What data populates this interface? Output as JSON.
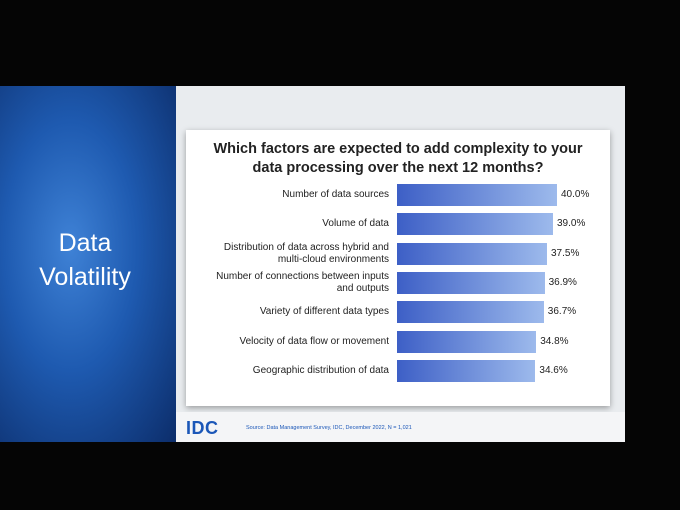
{
  "slide": {
    "section_title": "Data Volatility",
    "logo": "IDC",
    "source": "Source: Data Management Survey, IDC, December 2022, N = 1,021"
  },
  "chart_data": {
    "type": "bar",
    "orientation": "horizontal",
    "title": "Which factors are expected to add complexity to your data processing over the next 12 months?",
    "categories": [
      "Number of data sources",
      "Volume of data",
      "Distribution of data across hybrid and multi-cloud environments",
      "Number of connections between inputs and outputs",
      "Variety of different data types",
      "Velocity of data flow or movement",
      "Geographic distribution of data"
    ],
    "values": [
      40.0,
      39.0,
      37.5,
      36.9,
      36.7,
      34.8,
      34.6
    ],
    "value_labels": [
      "40.0%",
      "39.0%",
      "37.5%",
      "36.9%",
      "36.7%",
      "34.8%",
      "34.6%"
    ],
    "color": "#3d5fc6"
  }
}
